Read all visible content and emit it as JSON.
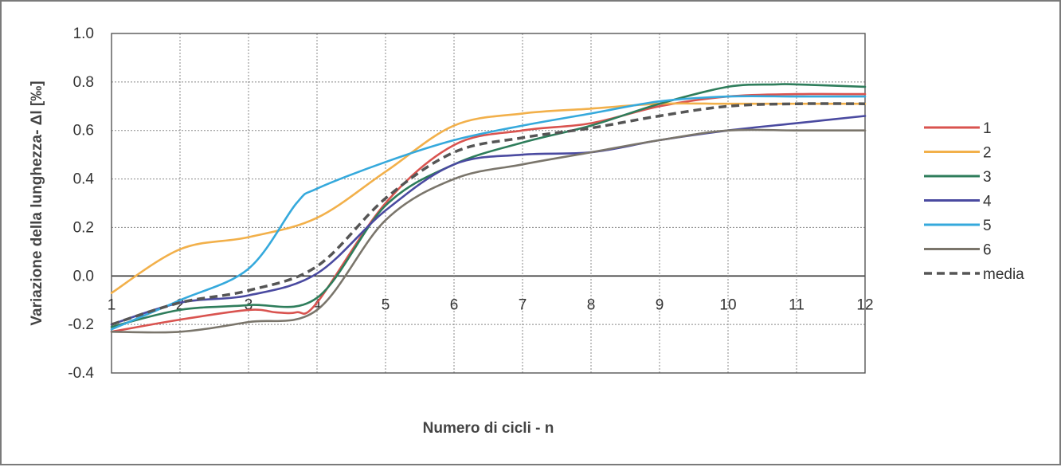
{
  "chart_data": {
    "type": "line",
    "title": "",
    "xlabel": "Numero di cicli - n",
    "ylabel": "Variazione della lunghezza- Δl  [‰]",
    "xlim": [
      1,
      12
    ],
    "ylim": [
      -0.4,
      1.0
    ],
    "x_ticks": [
      "1",
      "2",
      "3",
      "4",
      "5",
      "6",
      "7",
      "8",
      "9",
      "10",
      "11",
      "12"
    ],
    "y_ticks": [
      "-0.4",
      "-0.2",
      "0.0",
      "0.2",
      "0.4",
      "0.6",
      "0.8",
      "1.0"
    ],
    "grid": true,
    "smooth": true,
    "legend_position": "right",
    "series": [
      {
        "name": "1",
        "color": "#d9534f",
        "dash": false,
        "points": [
          [
            1,
            -0.23
          ],
          [
            2,
            -0.18
          ],
          [
            3,
            -0.14
          ],
          [
            3.4,
            -0.15
          ],
          [
            3.7,
            -0.15
          ],
          [
            4,
            -0.11
          ],
          [
            5,
            0.3
          ],
          [
            6,
            0.54
          ],
          [
            7,
            0.6
          ],
          [
            8,
            0.63
          ],
          [
            9,
            0.7
          ],
          [
            10,
            0.74
          ],
          [
            11,
            0.75
          ],
          [
            12,
            0.75
          ]
        ]
      },
      {
        "name": "2",
        "color": "#f2b04a",
        "dash": false,
        "points": [
          [
            1,
            -0.07
          ],
          [
            2,
            0.11
          ],
          [
            3,
            0.16
          ],
          [
            4,
            0.24
          ],
          [
            5,
            0.43
          ],
          [
            6,
            0.62
          ],
          [
            7,
            0.67
          ],
          [
            8,
            0.69
          ],
          [
            9,
            0.71
          ],
          [
            10,
            0.71
          ],
          [
            11,
            0.71
          ],
          [
            12,
            0.71
          ]
        ]
      },
      {
        "name": "3",
        "color": "#2e7d5b",
        "dash": false,
        "points": [
          [
            1,
            -0.21
          ],
          [
            2,
            -0.14
          ],
          [
            3,
            -0.12
          ],
          [
            4,
            -0.09
          ],
          [
            5,
            0.29
          ],
          [
            6,
            0.46
          ],
          [
            7,
            0.55
          ],
          [
            8,
            0.62
          ],
          [
            9,
            0.71
          ],
          [
            10,
            0.78
          ],
          [
            10.7,
            0.79
          ],
          [
            11,
            0.79
          ],
          [
            12,
            0.78
          ]
        ]
      },
      {
        "name": "4",
        "color": "#4a4aa0",
        "dash": false,
        "points": [
          [
            1,
            -0.2
          ],
          [
            2,
            -0.11
          ],
          [
            3,
            -0.08
          ],
          [
            4,
            0.01
          ],
          [
            5,
            0.27
          ],
          [
            6,
            0.46
          ],
          [
            7,
            0.5
          ],
          [
            8,
            0.51
          ],
          [
            9,
            0.56
          ],
          [
            10,
            0.6
          ],
          [
            11,
            0.63
          ],
          [
            12,
            0.66
          ]
        ]
      },
      {
        "name": "5",
        "color": "#35a9dc",
        "dash": false,
        "points": [
          [
            1,
            -0.22
          ],
          [
            2,
            -0.1
          ],
          [
            3,
            0.03
          ],
          [
            3.7,
            0.3
          ],
          [
            4,
            0.36
          ],
          [
            5,
            0.47
          ],
          [
            6,
            0.56
          ],
          [
            7,
            0.62
          ],
          [
            8,
            0.67
          ],
          [
            9,
            0.72
          ],
          [
            10,
            0.74
          ],
          [
            11,
            0.74
          ],
          [
            12,
            0.74
          ]
        ]
      },
      {
        "name": "6",
        "color": "#7a756b",
        "dash": false,
        "points": [
          [
            1,
            -0.23
          ],
          [
            2,
            -0.23
          ],
          [
            3,
            -0.19
          ],
          [
            4,
            -0.14
          ],
          [
            5,
            0.23
          ],
          [
            6,
            0.4
          ],
          [
            7,
            0.46
          ],
          [
            8,
            0.51
          ],
          [
            9,
            0.56
          ],
          [
            10,
            0.6
          ],
          [
            11,
            0.6
          ],
          [
            12,
            0.6
          ]
        ]
      },
      {
        "name": "media",
        "color": "#555555",
        "dash": true,
        "points": [
          [
            1,
            -0.2
          ],
          [
            2,
            -0.11
          ],
          [
            3,
            -0.06
          ],
          [
            4,
            0.04
          ],
          [
            5,
            0.32
          ],
          [
            6,
            0.51
          ],
          [
            7,
            0.57
          ],
          [
            8,
            0.61
          ],
          [
            9,
            0.66
          ],
          [
            10,
            0.7
          ],
          [
            11,
            0.71
          ],
          [
            12,
            0.71
          ]
        ]
      }
    ]
  }
}
